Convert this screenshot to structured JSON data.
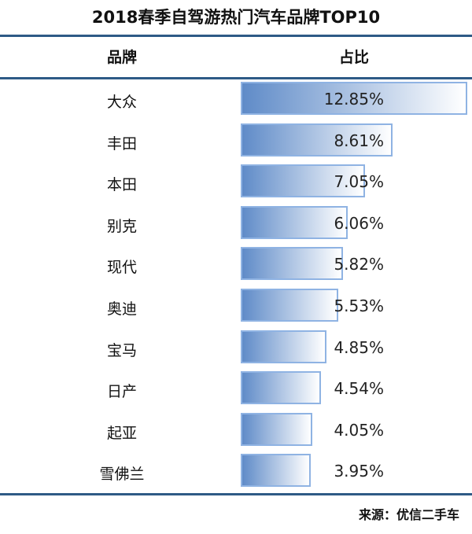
{
  "chart_data": {
    "type": "bar",
    "title": "2018春季自驾游热门汽车品牌TOP10",
    "columns": [
      "品牌",
      "占比"
    ],
    "categories": [
      "大众",
      "丰田",
      "本田",
      "别克",
      "现代",
      "奥迪",
      "宝马",
      "日产",
      "起亚",
      "雪佛兰"
    ],
    "values": [
      12.85,
      8.61,
      7.05,
      6.06,
      5.82,
      5.53,
      4.85,
      4.54,
      4.05,
      3.95
    ],
    "labels": [
      "12.85%",
      "8.61%",
      "7.05%",
      "6.06%",
      "5.82%",
      "5.53%",
      "4.85%",
      "4.54%",
      "4.05%",
      "3.95%"
    ],
    "unit": "%",
    "source": "来源：优信二手车",
    "colors": {
      "bar_start": "#5f8bc8",
      "bar_end": "#ffffff",
      "bar_border": "#8fb3e3",
      "rule": "#2e5a86"
    }
  }
}
